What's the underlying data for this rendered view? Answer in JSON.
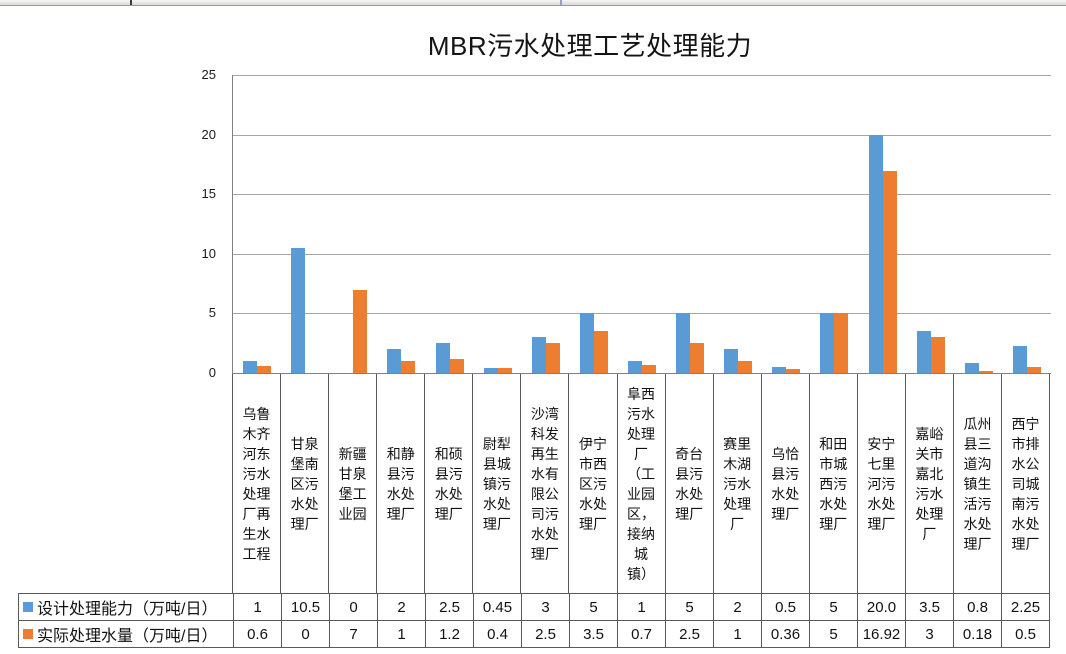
{
  "chart_data": {
    "type": "bar",
    "title": "MBR污水处理工艺处理能力",
    "categories": [
      "乌鲁木齐河东污水处理厂再生水工程",
      "甘泉堡南区污水处理厂",
      "新疆甘泉堡工业园",
      "和静县污水处理厂",
      "和硕县污水处理厂",
      "尉犁县城镇污水处理厂",
      "沙湾科发再生水有限公司污水处理厂",
      "伊宁市西区污水处理厂",
      "阜西污水处理厂（工业园区，接纳城镇）",
      "奇台县污水处理厂",
      "赛里木湖污水处理厂",
      "乌恰县污水处理厂",
      "和田市城西污水处理厂",
      "安宁七里河污水处理厂",
      "嘉峪关市嘉北污水处理厂",
      "瓜州县三道沟镇生活污水处理厂",
      "西宁市排水公司城南污水处理厂"
    ],
    "series": [
      {
        "name": "设计处理能力（万吨/日）",
        "color": "#5B9BD5",
        "values": [
          1,
          10.5,
          0,
          2,
          2.5,
          0.45,
          3,
          5,
          1,
          5,
          2,
          0.5,
          5,
          20.0,
          3.5,
          0.8,
          2.25
        ],
        "values_display": [
          "1",
          "10.5",
          "0",
          "2",
          "2.5",
          "0.45",
          "3",
          "5",
          "1",
          "5",
          "2",
          "0.5",
          "5",
          "20.0",
          "3.5",
          "0.8",
          "2.25"
        ]
      },
      {
        "name": "实际处理水量（万吨/日）",
        "color": "#ED7D31",
        "values": [
          0.6,
          0,
          7,
          1,
          1.2,
          0.4,
          2.5,
          3.5,
          0.7,
          2.5,
          1,
          0.36,
          5,
          16.92,
          3,
          0.18,
          0.5
        ],
        "values_display": [
          "0.6",
          "0",
          "7",
          "1",
          "1.2",
          "0.4",
          "2.5",
          "3.5",
          "0.7",
          "2.5",
          "1",
          "0.36",
          "5",
          "16.92",
          "3",
          "0.18",
          "0.5"
        ]
      }
    ],
    "y_axis": {
      "ticks": [
        0,
        5,
        10,
        15,
        20,
        25
      ],
      "max": 25
    },
    "grid": true,
    "legend_position": "data-table-left",
    "colors": {
      "gridline": "#A6A6A6",
      "axis": "#808080",
      "table_border": "#595959"
    }
  }
}
